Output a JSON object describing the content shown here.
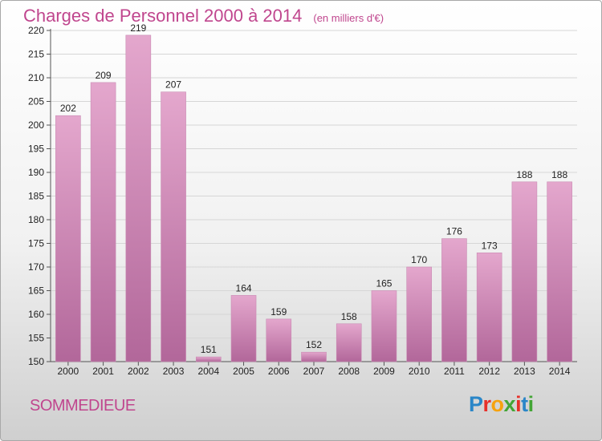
{
  "title": "Charges de Personnel 2000 à 2014",
  "unit_note": "(en milliers d'€)",
  "commune": "SOMMEDIEUE",
  "logo": {
    "p": "P",
    "r": "r",
    "o": "o",
    "x": "x",
    "i1": "i",
    "t": "t",
    "i2": "i"
  },
  "colors": {
    "accent": "#c0468e",
    "bar_top": "#e4a7cd",
    "bar_bottom": "#b2679a"
  },
  "chart_data": {
    "type": "bar",
    "title": "Charges de Personnel 2000 à 2014",
    "subtitle": "(en milliers d'€)",
    "categories": [
      "2000",
      "2001",
      "2002",
      "2003",
      "2004",
      "2005",
      "2006",
      "2007",
      "2008",
      "2009",
      "2010",
      "2011",
      "2012",
      "2013",
      "2014"
    ],
    "values": [
      202,
      209,
      219,
      207,
      151,
      164,
      159,
      152,
      158,
      165,
      170,
      176,
      173,
      188,
      188
    ],
    "ylim": [
      150,
      220
    ],
    "yticks": [
      150,
      155,
      160,
      165,
      170,
      175,
      180,
      185,
      190,
      195,
      200,
      205,
      210,
      215,
      220
    ],
    "grid": true,
    "xlabel": "",
    "ylabel": ""
  }
}
